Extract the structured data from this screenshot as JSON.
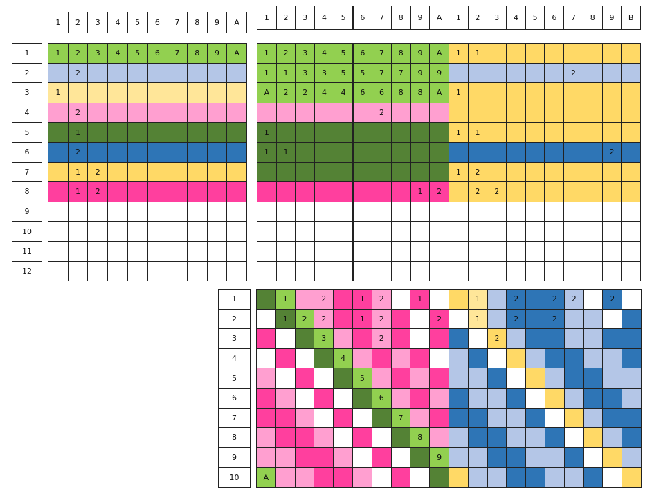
{
  "palette": {
    "G": "#92d050",
    "D": "#548235",
    "L": "#b4c6e7",
    "B": "#2e75b6",
    "Y": "#ffd966",
    "y": "#ffe699",
    "K": "#ff9fd0",
    "M": "#ff3f9e",
    "W": "#ffffff"
  },
  "panel_a": {
    "col_headers": [
      "1",
      "2",
      "3",
      "4",
      "5",
      "6",
      "7",
      "8",
      "9",
      "A"
    ],
    "row_headers": [
      "1",
      "2",
      "3",
      "4",
      "5",
      "6",
      "7",
      "8",
      "9",
      "10",
      "11",
      "12"
    ],
    "rows": [
      {
        "colors": "GGGGGGGGGG",
        "labels": [
          "1",
          "2",
          "3",
          "4",
          "5",
          "6",
          "7",
          "8",
          "9",
          "A"
        ]
      },
      {
        "colors": "LLLLLLLLLL",
        "labels": [
          "",
          "2",
          "",
          "",
          "",
          "",
          "",
          "",
          "",
          ""
        ]
      },
      {
        "colors": "yyyyyyyyyy",
        "labels": [
          "1",
          "",
          "",
          "",
          "",
          "",
          "",
          "",
          "",
          ""
        ]
      },
      {
        "colors": "KKKKKKKKKK",
        "labels": [
          "",
          "2",
          "",
          "",
          "",
          "",
          "",
          "",
          "",
          ""
        ]
      },
      {
        "colors": "DDDDDDDDDD",
        "labels": [
          "",
          "1",
          "",
          "",
          "",
          "",
          "",
          "",
          "",
          ""
        ]
      },
      {
        "colors": "BBBBBBBBBB",
        "labels": [
          "",
          "2",
          "",
          "",
          "",
          "",
          "",
          "",
          "",
          ""
        ]
      },
      {
        "colors": "YYYYYYYYYY",
        "labels": [
          "",
          "1",
          "2",
          "",
          "",
          "",
          "",
          "",
          "",
          ""
        ]
      },
      {
        "colors": "MMMMMMMMMM",
        "labels": [
          "",
          "1",
          "2",
          "",
          "",
          "",
          "",
          "",
          "",
          ""
        ]
      },
      {
        "colors": "WWWWWWWWWW",
        "labels": [
          "",
          "",
          "",
          "",
          "",
          "",
          "",
          "",
          "",
          ""
        ]
      },
      {
        "colors": "WWWWWWWWWW",
        "labels": [
          "",
          "",
          "",
          "",
          "",
          "",
          "",
          "",
          "",
          ""
        ]
      },
      {
        "colors": "WWWWWWWWWW",
        "labels": [
          "",
          "",
          "",
          "",
          "",
          "",
          "",
          "",
          "",
          ""
        ]
      },
      {
        "colors": "WWWWWWWWWW",
        "labels": [
          "",
          "",
          "",
          "",
          "",
          "",
          "",
          "",
          "",
          ""
        ]
      }
    ]
  },
  "panel_b": {
    "col_headers": [
      "1",
      "2",
      "3",
      "4",
      "5",
      "6",
      "7",
      "8",
      "9",
      "A",
      "1",
      "2",
      "3",
      "4",
      "5",
      "6",
      "7",
      "8",
      "9",
      "B"
    ],
    "rows": [
      {
        "colors": "GGGGGGGGGGYYYYYYYYYY",
        "labels": [
          "1",
          "2",
          "3",
          "4",
          "5",
          "6",
          "7",
          "8",
          "9",
          "A",
          "1",
          "1",
          "",
          "",
          "",
          "",
          "",
          "",
          "",
          ""
        ]
      },
      {
        "colors": "GGGGGGGGGGLLLLLLLLLL",
        "labels": [
          "1",
          "1",
          "3",
          "3",
          "5",
          "5",
          "7",
          "7",
          "9",
          "9",
          "",
          "",
          "",
          "",
          "",
          "",
          "2",
          "",
          "",
          ""
        ]
      },
      {
        "colors": "GGGGGGGGGGYYYYYYYYYY",
        "labels": [
          "A",
          "2",
          "2",
          "4",
          "4",
          "6",
          "6",
          "8",
          "8",
          "A",
          "1",
          "",
          "",
          "",
          "",
          "",
          "",
          "",
          "",
          ""
        ]
      },
      {
        "colors": "KKKKKKKKKKYYYYYYYYYY",
        "labels": [
          "",
          "",
          "",
          "",
          "",
          "",
          "2",
          "",
          "",
          "",
          "",
          "",
          "",
          "",
          "",
          "",
          "",
          "",
          "",
          ""
        ]
      },
      {
        "colors": "DDDDDDDDDDYYYYYYYYYY",
        "labels": [
          "1",
          "",
          "",
          "",
          "",
          "",
          "",
          "",
          "",
          "",
          "1",
          "1",
          "",
          "",
          "",
          "",
          "",
          "",
          "",
          ""
        ]
      },
      {
        "colors": "DDDDDDDDDDBBBBBBBBBB",
        "labels": [
          "1",
          "1",
          "",
          "",
          "",
          "",
          "",
          "",
          "",
          "",
          "",
          "",
          "",
          "",
          "",
          "",
          "",
          "",
          "2",
          ""
        ]
      },
      {
        "colors": "DDDDDDDDDDYYYYYYYYYY",
        "labels": [
          "",
          "",
          "",
          "",
          "",
          "",
          "",
          "",
          "",
          "",
          "1",
          "2",
          "",
          "",
          "",
          "",
          "",
          "",
          "",
          ""
        ]
      },
      {
        "colors": "MMMMMMMMMMYYYYYYYYYY",
        "labels": [
          "",
          "",
          "",
          "",
          "",
          "",
          "",
          "",
          "1",
          "2",
          "",
          "2",
          "2",
          "",
          "",
          "",
          "",
          "",
          "",
          ""
        ]
      },
      {
        "colors": "WWWWWWWWWWWWWWWWWWWW",
        "labels": [
          "",
          "",
          "",
          "",
          "",
          "",
          "",
          "",
          "",
          "",
          "",
          "",
          "",
          "",
          "",
          "",
          "",
          "",
          "",
          ""
        ]
      },
      {
        "colors": "WWWWWWWWWWWWWWWWWWWW",
        "labels": [
          "",
          "",
          "",
          "",
          "",
          "",
          "",
          "",
          "",
          "",
          "",
          "",
          "",
          "",
          "",
          "",
          "",
          "",
          "",
          ""
        ]
      },
      {
        "colors": "WWWWWWWWWWWWWWWWWWWW",
        "labels": [
          "",
          "",
          "",
          "",
          "",
          "",
          "",
          "",
          "",
          "",
          "",
          "",
          "",
          "",
          "",
          "",
          "",
          "",
          "",
          ""
        ]
      },
      {
        "colors": "WWWWWWWWWWWWWWWWWWWW",
        "labels": [
          "",
          "",
          "",
          "",
          "",
          "",
          "",
          "",
          "",
          "",
          "",
          "",
          "",
          "",
          "",
          "",
          "",
          "",
          "",
          ""
        ]
      }
    ]
  },
  "panel_c": {
    "row_headers": [
      "1",
      "2",
      "3",
      "4",
      "5",
      "6",
      "7",
      "8",
      "9",
      "10"
    ],
    "rows": [
      {
        "colors": "DGKKMMKWMWYyLBBBLWBW",
        "labels": [
          "",
          "1",
          "",
          "2",
          "",
          "1",
          "2",
          "",
          "1",
          "",
          "",
          "1",
          "",
          "2",
          "",
          "2",
          "2",
          "",
          "2",
          ""
        ]
      },
      {
        "colors": "WDGKMMKMWMWyLBBBLLWB",
        "labels": [
          "",
          "1",
          "2",
          "2",
          "",
          "1",
          "2",
          "",
          "",
          "2",
          "",
          "1",
          "",
          "2",
          "",
          "2",
          "",
          "",
          "",
          ""
        ]
      },
      {
        "colors": "MWDGKMKMWMBWYLBBLLBB",
        "labels": [
          "",
          "",
          "",
          "3",
          "",
          "",
          "2",
          "",
          "",
          "",
          "",
          "",
          "2",
          "",
          "",
          "",
          "",
          "",
          "",
          ""
        ]
      },
      {
        "colors": "WMWDGKMKMWLBWYLBBLLB",
        "labels": [
          "",
          "",
          "",
          "",
          "4",
          "",
          "",
          "",
          "",
          "",
          "",
          "",
          "",
          "",
          "",
          "",
          "",
          "",
          "",
          ""
        ]
      },
      {
        "colors": "KWMWDGKMKMLLBWYLBBLL",
        "labels": [
          "",
          "",
          "",
          "",
          "",
          "5",
          "",
          "",
          "",
          "",
          "",
          "",
          "",
          "",
          "",
          "",
          "",
          "",
          "",
          ""
        ]
      },
      {
        "colors": "MKWMWDGKMKBLLBWYLBBL",
        "labels": [
          "",
          "",
          "",
          "",
          "",
          "",
          "6",
          "",
          "",
          "",
          "",
          "",
          "",
          "",
          "",
          "",
          "",
          "",
          "",
          ""
        ]
      },
      {
        "colors": "MMKWMWDGKMBBLLBWYLBB",
        "labels": [
          "",
          "",
          "",
          "",
          "",
          "",
          "",
          "7",
          "",
          "",
          "",
          "",
          "",
          "",
          "",
          "",
          "",
          "",
          "",
          ""
        ]
      },
      {
        "colors": "KMMKWMWDGKLBBLLBWYLB",
        "labels": [
          "",
          "",
          "",
          "",
          "",
          "",
          "",
          "",
          "8",
          "",
          "",
          "",
          "",
          "",
          "",
          "",
          "",
          "",
          "",
          ""
        ]
      },
      {
        "colors": "KKMMKWMWDGLLBBLLBWYL",
        "labels": [
          "",
          "",
          "",
          "",
          "",
          "",
          "",
          "",
          "",
          "9",
          "",
          "",
          "",
          "",
          "",
          "",
          "",
          "",
          "",
          ""
        ]
      },
      {
        "colors": "GKKMMKWMWDYLLBBLLBWY",
        "labels": [
          "A",
          "",
          "",
          "",
          "",
          "",
          "",
          "",
          "",
          "",
          "",
          "",
          "",
          "",
          "",
          "",
          "",
          "",
          "",
          ""
        ]
      }
    ]
  }
}
